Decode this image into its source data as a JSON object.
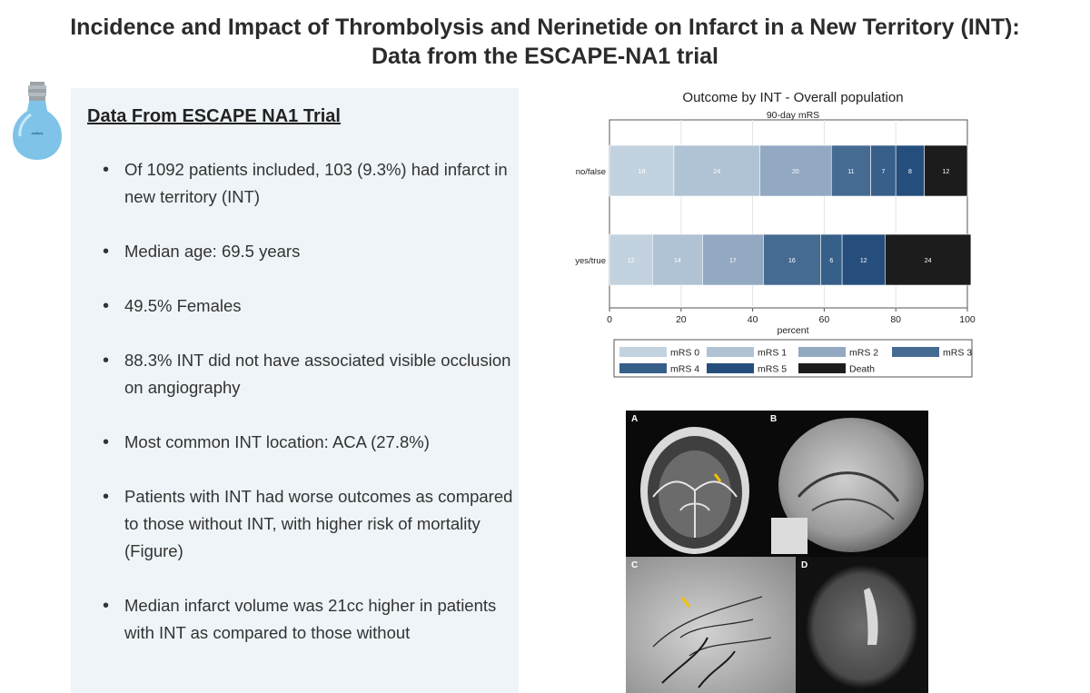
{
  "header": {
    "title_line1": "Incidence and Impact of Thrombolysis and Nerinetide on Infarct in a New Territory (INT):",
    "title_line2": "Data from the ESCAPE-NA1 trial"
  },
  "panel": {
    "heading": "Data From ESCAPE NA1 Trial",
    "bullets": [
      "Of 1092 patients included, 103 (9.3%) had infarct in new territory (INT)",
      "Median age: 69.5 years",
      "49.5% Females",
      "88.3% INT did not have associated visible occlusion on angiography",
      "Most common INT location: ACA (27.8%)",
      "Patients with INT had worse outcomes as compared to those without INT, with higher risk of mortality (Figure)",
      "Median infarct volume was 21cc higher in patients with INT as compared to those without"
    ]
  },
  "chart_data": {
    "type": "bar",
    "orientation": "horizontal",
    "stacked": true,
    "title": "Outcome by INT - Overall population",
    "subtitle": "90-day mRS",
    "xlabel": "percent",
    "xlim": [
      0,
      100
    ],
    "xticks": [
      0,
      20,
      40,
      60,
      80,
      100
    ],
    "categories": [
      "no/false",
      "yes/true"
    ],
    "series": [
      {
        "name": "mRS 0",
        "color": "#c3d2df",
        "values": [
          18,
          12
        ]
      },
      {
        "name": "mRS 1",
        "color": "#b0c3d5",
        "values": [
          24,
          14
        ]
      },
      {
        "name": "mRS 2",
        "color": "#93a9c2",
        "values": [
          20,
          17
        ]
      },
      {
        "name": "mRS 3",
        "color": "#466b92",
        "values": [
          11,
          16
        ]
      },
      {
        "name": "mRS 4",
        "color": "#365f89",
        "values": [
          7,
          6
        ]
      },
      {
        "name": "mRS 5",
        "color": "#254e7d",
        "values": [
          8,
          12
        ]
      },
      {
        "name": "Death",
        "color": "#1c1c1c",
        "values": [
          12,
          24
        ]
      }
    ],
    "legend_position": "bottom",
    "grid": true
  },
  "figure": {
    "panel_labels": [
      "A",
      "B",
      "C",
      "D"
    ]
  }
}
